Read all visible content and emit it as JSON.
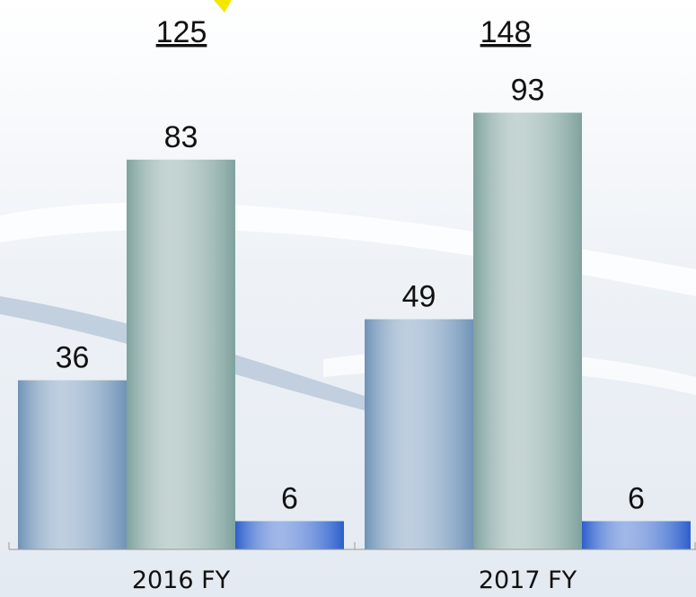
{
  "chart_data": {
    "type": "bar",
    "categories": [
      "2016 FY",
      "2017 FY"
    ],
    "totals": [
      125,
      148
    ],
    "series": [
      {
        "color": "#6f93b8",
        "values": [
          36,
          49
        ]
      },
      {
        "color": "#7fa29e",
        "values": [
          83,
          93
        ]
      },
      {
        "color": "#2c5fcc",
        "values": [
          6,
          6
        ]
      }
    ]
  }
}
